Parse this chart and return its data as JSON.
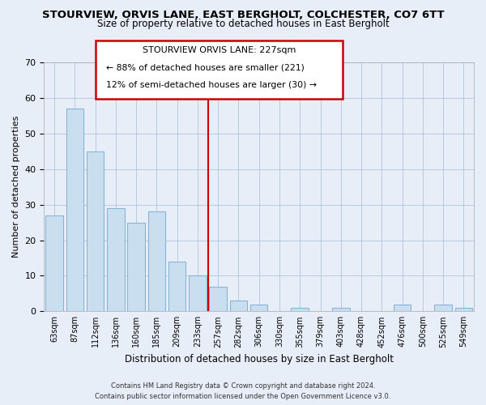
{
  "title": "STOURVIEW, ORVIS LANE, EAST BERGHOLT, COLCHESTER, CO7 6TT",
  "subtitle": "Size of property relative to detached houses in East Bergholt",
  "xlabel": "Distribution of detached houses by size in East Bergholt",
  "ylabel": "Number of detached properties",
  "bar_labels": [
    "63sqm",
    "87sqm",
    "112sqm",
    "136sqm",
    "160sqm",
    "185sqm",
    "209sqm",
    "233sqm",
    "257sqm",
    "282sqm",
    "306sqm",
    "330sqm",
    "355sqm",
    "379sqm",
    "403sqm",
    "428sqm",
    "452sqm",
    "476sqm",
    "500sqm",
    "525sqm",
    "549sqm"
  ],
  "bar_values": [
    27,
    57,
    45,
    29,
    25,
    28,
    14,
    10,
    7,
    3,
    2,
    0,
    1,
    0,
    1,
    0,
    0,
    2,
    0,
    2,
    1
  ],
  "bar_color": "#c9dff0",
  "bar_edge_color": "#8ab4d4",
  "vline_x": 7.5,
  "vline_color": "#cc0000",
  "ylim": [
    0,
    70
  ],
  "yticks": [
    0,
    10,
    20,
    30,
    40,
    50,
    60,
    70
  ],
  "annotation_title": "STOURVIEW ORVIS LANE: 227sqm",
  "annotation_line1": "← 88% of detached houses are smaller (221)",
  "annotation_line2": "12% of semi-detached houses are larger (30) →",
  "annotation_box_color": "#ffffff",
  "annotation_box_edge_color": "#cc0000",
  "footer_line1": "Contains HM Land Registry data © Crown copyright and database right 2024.",
  "footer_line2": "Contains public sector information licensed under the Open Government Licence v3.0.",
  "bg_color": "#e8eef8",
  "plot_bg_color": "#e8eef8"
}
